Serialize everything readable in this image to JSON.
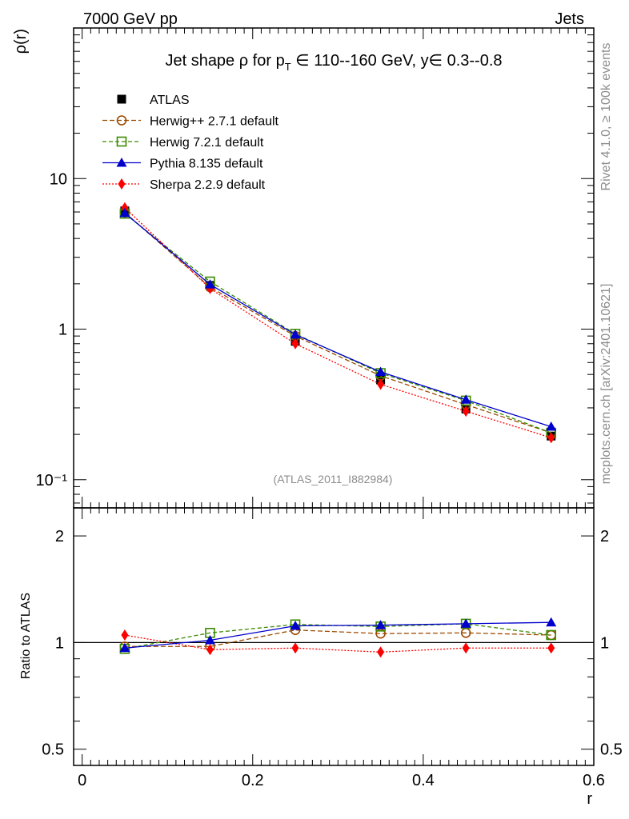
{
  "header": {
    "left": "7000 GeV pp",
    "right": "Jets"
  },
  "side_labels": {
    "rivet": "Rivet 4.1.0, ≥ 100k events",
    "mcplots": "mcplots.cern.ch [arXiv:2401.10621]"
  },
  "watermark": "(ATLAS_2011_I882984)",
  "chart_data": {
    "type": "line",
    "title": "Jet shape ρ for p_T ∈ 110--160 GeV, y∈ 0.3--0.8",
    "title_parts": {
      "pre": "Jet shape ρ for p",
      "sub": "T",
      "post": " ∈ 110--160 GeV, y∈ 0.3--0.8"
    },
    "xlabel": "r",
    "ylabel": "ρ(r)",
    "ratio_ylabel": "Ratio to ATLAS",
    "xlim": [
      -0.01,
      0.6
    ],
    "ylim": [
      0.065,
      100
    ],
    "yscale": "log",
    "ratio_ylim": [
      0.45,
      2.4
    ],
    "x_ticks": [
      "0",
      "0.2",
      "0.4",
      "0.6"
    ],
    "y_ticks": [
      "10⁻¹",
      "1",
      "10"
    ],
    "ratio_ticks": [
      "0.5",
      "1",
      "2"
    ],
    "x": [
      0.05,
      0.15,
      0.25,
      0.35,
      0.45,
      0.55
    ],
    "series": [
      {
        "name": "ATLAS",
        "color": "#000000",
        "marker": "square-filled",
        "values": [
          6.1,
          1.95,
          0.83,
          0.46,
          0.295,
          0.195
        ],
        "ratio": [
          1,
          1,
          1,
          1,
          1,
          1
        ]
      },
      {
        "name": "Herwig++ 2.7.1 default",
        "color": "#9c4a00",
        "marker": "circle-open",
        "dash": "6,3",
        "values": [
          5.95,
          1.9,
          0.9,
          0.49,
          0.315,
          0.205
        ],
        "ratio": [
          0.975,
          0.975,
          1.085,
          1.06,
          1.065,
          1.05
        ]
      },
      {
        "name": "Herwig 7.2.1 default",
        "color": "#3a8a00",
        "marker": "square-open",
        "dash": "5,3",
        "values": [
          5.85,
          2.07,
          0.93,
          0.51,
          0.335,
          0.205
        ],
        "ratio": [
          0.96,
          1.065,
          1.125,
          1.11,
          1.13,
          1.05
        ]
      },
      {
        "name": "Pythia 8.135 default",
        "color": "#0000cc",
        "marker": "triangle-filled",
        "values": [
          5.9,
          1.98,
          0.92,
          0.52,
          0.34,
          0.225
        ],
        "ratio": [
          0.965,
          1.015,
          1.115,
          1.12,
          1.13,
          1.14
        ]
      },
      {
        "name": "Sherpa 2.2.9 default",
        "color": "#ff0000",
        "marker": "diamond-filled",
        "dash": "2,2",
        "values": [
          6.4,
          1.86,
          0.8,
          0.43,
          0.285,
          0.19
        ],
        "ratio": [
          1.05,
          0.955,
          0.965,
          0.94,
          0.965,
          0.965
        ]
      }
    ]
  }
}
